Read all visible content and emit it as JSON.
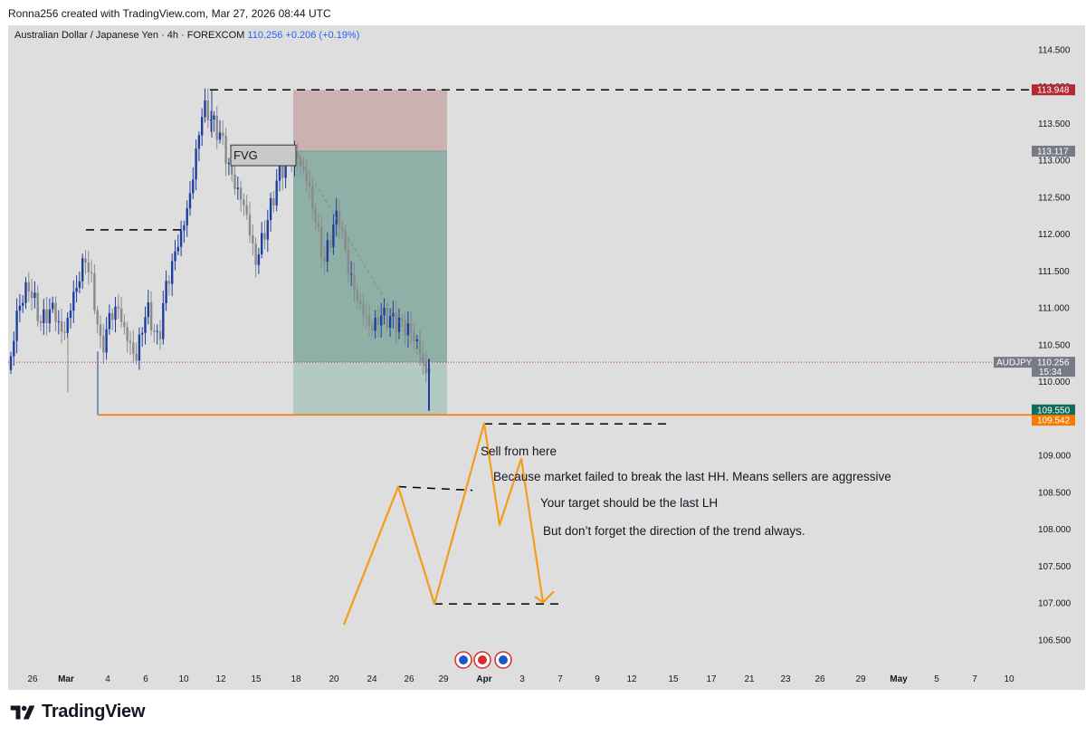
{
  "caption": "Ronna256 created with TradingView.com, Mar 27, 2026 08:44 UTC",
  "header": {
    "symbol": "Australian Dollar / Japanese Yen · 4h · FOREXCOM",
    "price": "110.256",
    "change": "+0.206 (+0.19%)"
  },
  "brand": "TradingView",
  "chart_data": {
    "type": "candlestick",
    "symbol": "AUDJPY",
    "interval": "4h",
    "y_axis": {
      "ticks": [
        "114.500",
        "114.000",
        "113.500",
        "113.000",
        "112.500",
        "112.000",
        "111.500",
        "111.000",
        "110.500",
        "110.000",
        "109.500",
        "109.000",
        "108.500",
        "108.000",
        "107.500",
        "107.000",
        "106.500"
      ],
      "range": [
        106.2,
        114.8
      ]
    },
    "x_axis": {
      "ticks": [
        "26",
        "Mar",
        "4",
        "6",
        "10",
        "12",
        "15",
        "18",
        "20",
        "24",
        "26",
        "29",
        "Apr",
        "3",
        "7",
        "9",
        "12",
        "15",
        "17",
        "21",
        "23",
        "26",
        "29",
        "May",
        "5",
        "7",
        "10"
      ]
    },
    "price_labels": [
      {
        "value": "113.948",
        "color": "#b22833"
      },
      {
        "value": "113.117",
        "color": "#787b86"
      },
      {
        "symbol": "AUDJPY",
        "value": "110.256",
        "countdown": "15:34",
        "color": "#787b86"
      },
      {
        "value": "109.550",
        "color": "#0f6b5b"
      },
      {
        "value": "109.542",
        "color": "#f57c00"
      }
    ],
    "levels": {
      "previous_high": 113.948,
      "entry": 113.117,
      "target": 109.55,
      "support_line": 109.542,
      "current": 110.256
    },
    "annotations": [
      "FVG",
      "Sell from here",
      "Because market failed to break the last HH. Means sellers are aggressive",
      "Your target should be the last LH",
      "But don’t forget the direction of the trend always."
    ],
    "colors": {
      "bull": "#1e3fa0",
      "bear": "#8a8a8a",
      "stop_zone": "#c9a9a9",
      "profit_zone": "#8fb0a6",
      "support": "#f57c00",
      "drawing": "#f59c1a"
    }
  }
}
